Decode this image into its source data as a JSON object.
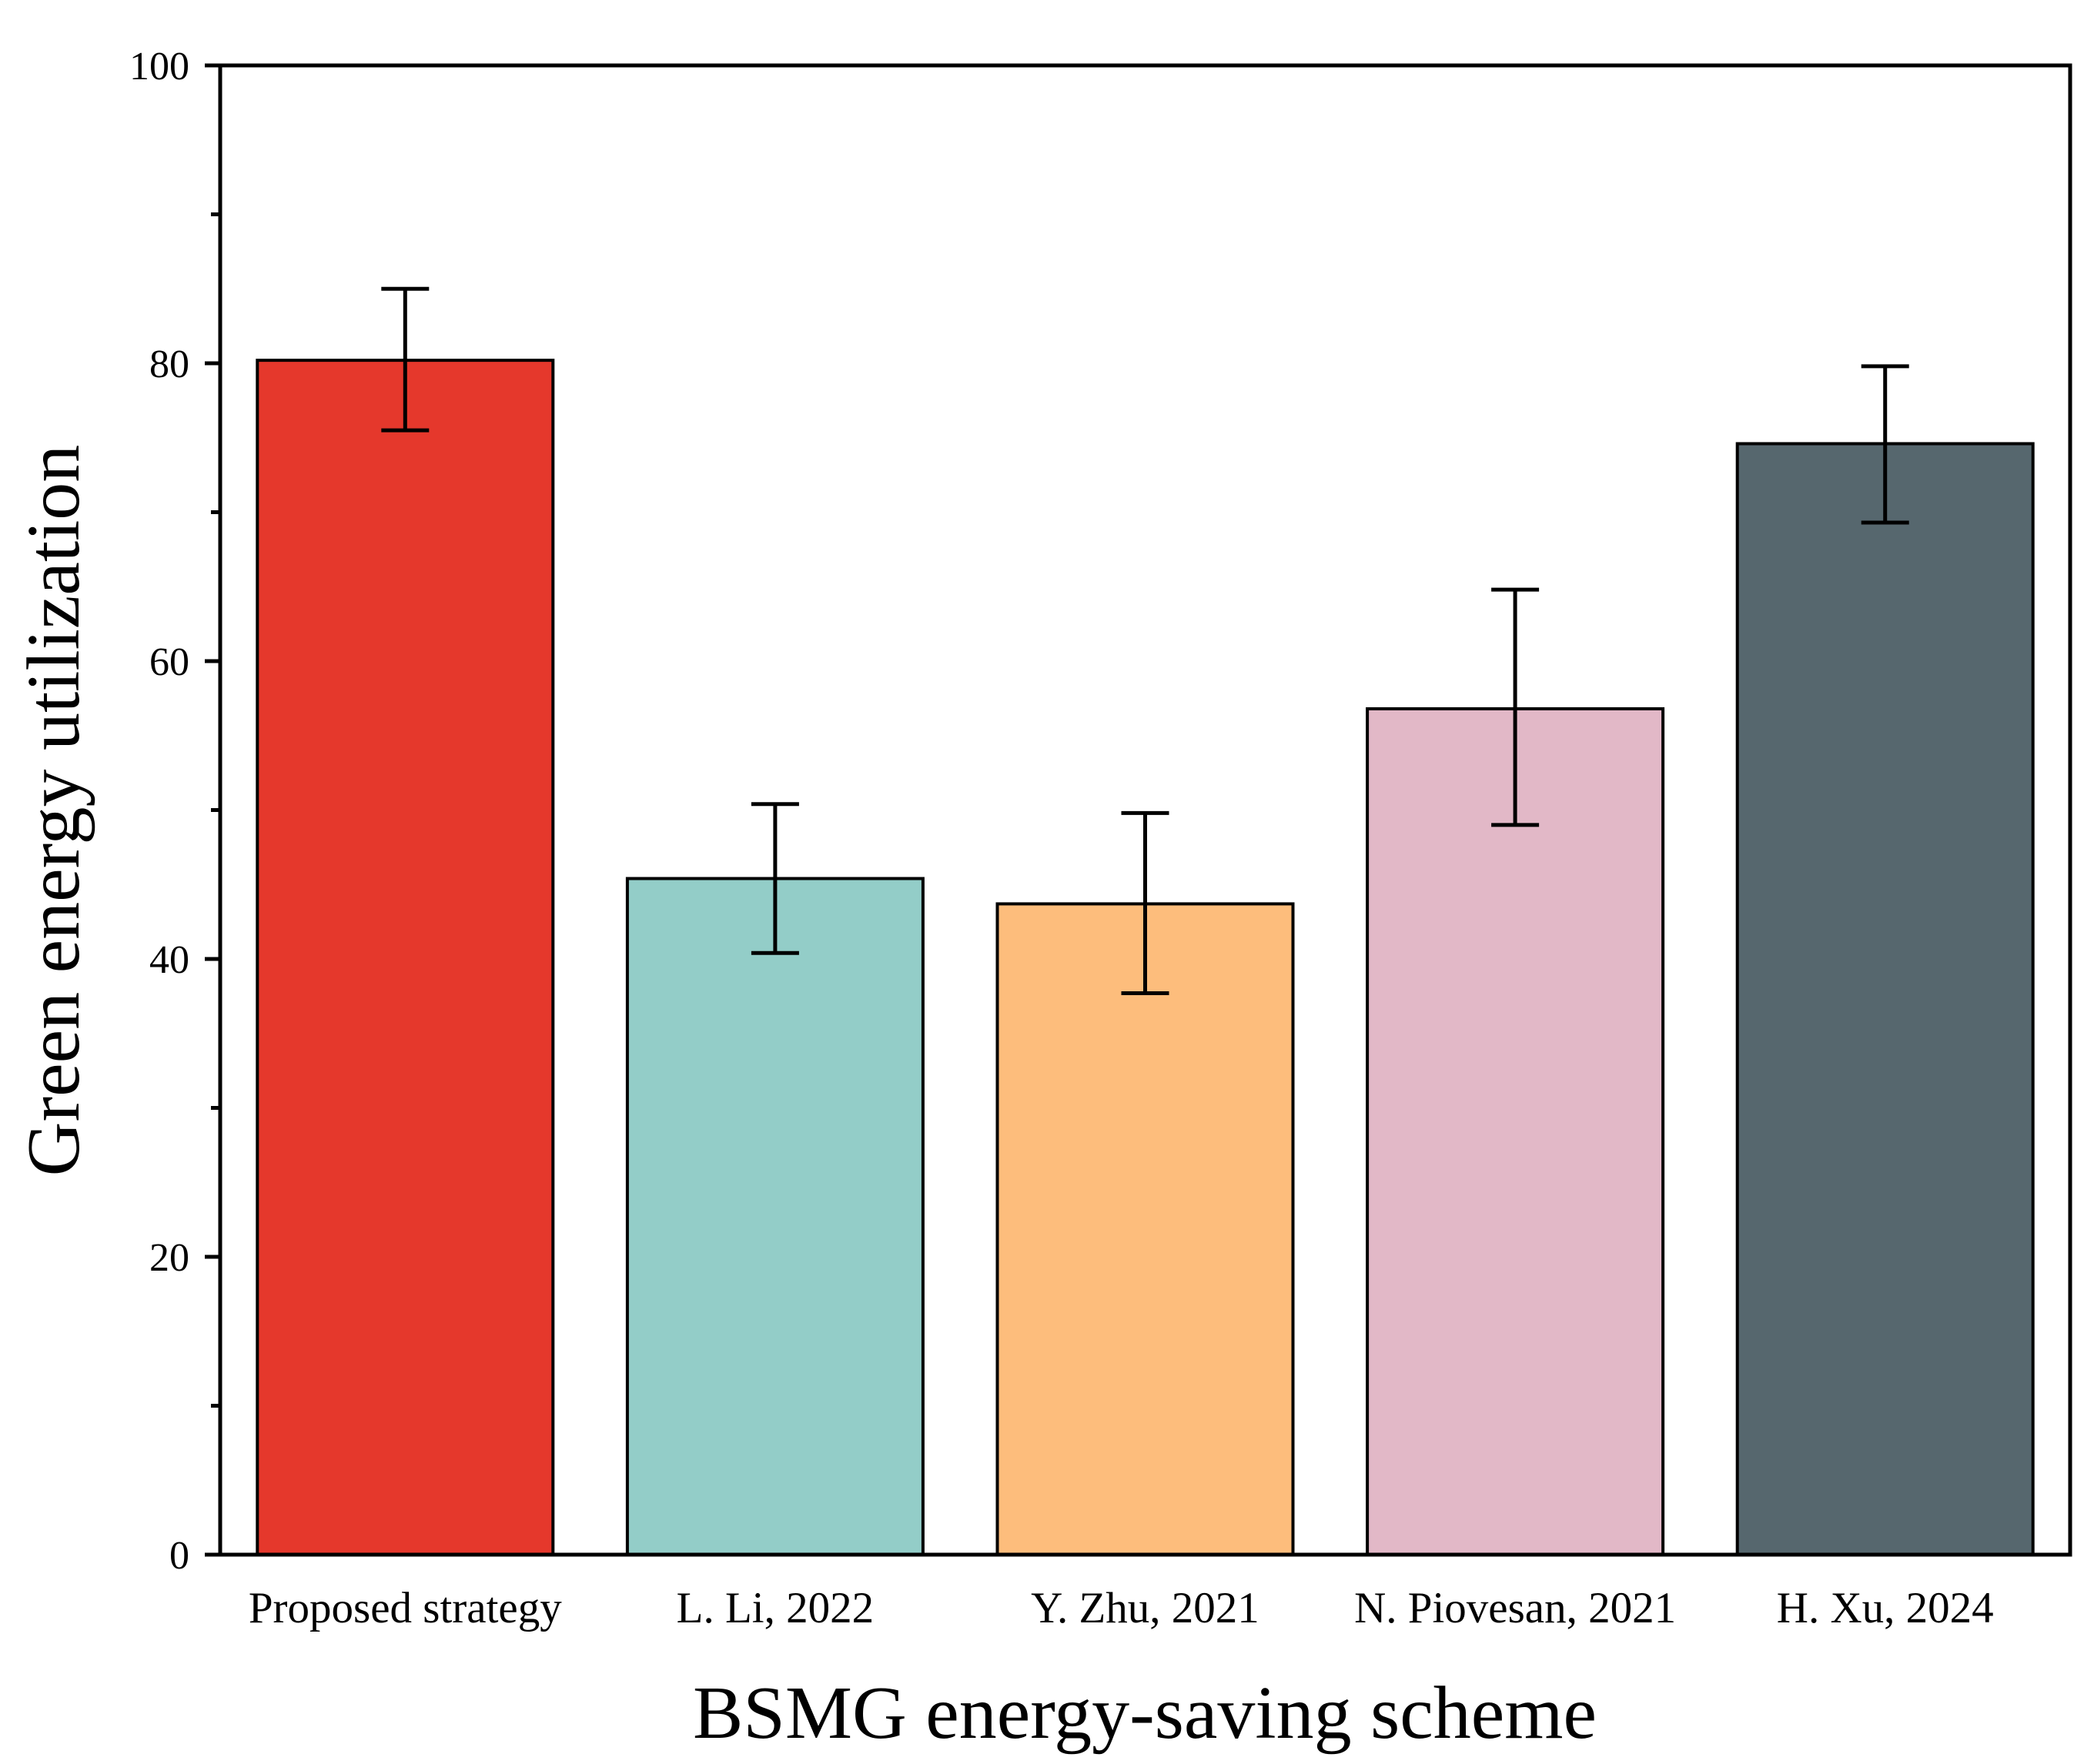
{
  "chart_data": {
    "type": "bar",
    "title": "",
    "xlabel": "BSMG energy-saving scheme",
    "ylabel": "Green energy utilization",
    "ylim": [
      0,
      100
    ],
    "yticks": [
      0,
      20,
      40,
      60,
      80,
      100
    ],
    "yminor_ticks": [
      10,
      30,
      50,
      70,
      90
    ],
    "grid": false,
    "legend": "none",
    "categories": [
      "Proposed strategy",
      "L. Li, 2022",
      "Y. Zhu, 2021",
      "N. Piovesan, 2021",
      "H. Xu, 2024"
    ],
    "values": [
      80.2,
      45.4,
      43.7,
      56.8,
      74.6
    ],
    "error_low": [
      75.5,
      40.4,
      37.7,
      49.0,
      69.3
    ],
    "error_high": [
      85.0,
      50.4,
      49.8,
      64.8,
      79.8
    ],
    "colors": [
      "#e5382c",
      "#93cdc8",
      "#fdbd7c",
      "#e2b8c7",
      "#56676e"
    ]
  }
}
